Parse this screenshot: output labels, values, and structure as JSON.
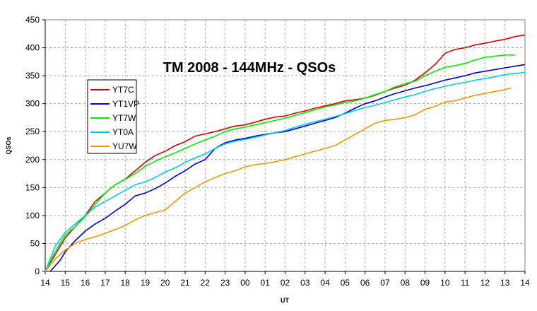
{
  "chart_data": {
    "type": "line",
    "title": "TM 2008 - 144MHz - QSOs",
    "xlabel": "UT",
    "ylabel": "QSOs",
    "x_tick_labels": [
      "14",
      "15",
      "16",
      "17",
      "18",
      "19",
      "20",
      "21",
      "22",
      "23",
      "00",
      "01",
      "02",
      "03",
      "04",
      "05",
      "06",
      "07",
      "08",
      "09",
      "10",
      "11",
      "12",
      "13",
      "14"
    ],
    "y_ticks": [
      0,
      50,
      100,
      150,
      200,
      250,
      300,
      350,
      400,
      450
    ],
    "xlim": [
      0,
      24
    ],
    "ylim": [
      0,
      450
    ],
    "grid": "dashed, both axes",
    "legend_position": "upper-left inside plot",
    "x_unit_note": "x values are hours elapsed since 14 UT",
    "series": [
      {
        "name": "YT7C",
        "color": "#dd0000",
        "x": [
          0,
          0.5,
          1,
          1.5,
          2,
          2.5,
          3,
          3.5,
          4,
          4.5,
          5,
          5.5,
          6,
          6.5,
          7,
          7.5,
          8,
          8.5,
          9,
          9.5,
          10,
          10.5,
          11,
          11.5,
          12,
          12.5,
          13,
          13.5,
          14,
          14.5,
          15,
          15.5,
          16,
          16.5,
          17,
          17.5,
          18,
          18.5,
          19,
          19.5,
          20,
          20.5,
          21,
          21.5,
          22,
          22.5,
          23,
          23.5,
          24
        ],
        "values": [
          0,
          30,
          60,
          80,
          100,
          125,
          140,
          155,
          165,
          180,
          195,
          207,
          215,
          225,
          232,
          242,
          246,
          250,
          255,
          260,
          262,
          267,
          272,
          276,
          278,
          283,
          287,
          292,
          296,
          300,
          305,
          307,
          310,
          315,
          322,
          328,
          333,
          342,
          355,
          370,
          390,
          397,
          400,
          405,
          408,
          412,
          415,
          420,
          423
        ]
      },
      {
        "name": "YT1VP",
        "color": "#0000cc",
        "x": [
          0.25,
          0.5,
          0.75,
          1,
          1.5,
          2,
          2.5,
          3,
          3.5,
          4,
          4.5,
          5,
          5.5,
          6,
          6.5,
          7,
          7.5,
          8,
          8.5,
          9,
          9.5,
          10,
          10.5,
          11,
          11.5,
          12,
          12.5,
          13,
          13.5,
          14,
          14.5,
          15,
          15.5,
          16,
          16.5,
          17,
          17.5,
          18,
          18.5,
          19,
          19.5,
          20,
          20.5,
          21,
          21.5,
          22,
          22.5,
          23,
          23.5,
          24
        ],
        "values": [
          0,
          10,
          20,
          35,
          55,
          72,
          85,
          95,
          108,
          120,
          135,
          140,
          148,
          158,
          170,
          180,
          192,
          200,
          220,
          230,
          235,
          238,
          242,
          245,
          248,
          250,
          255,
          260,
          265,
          270,
          275,
          283,
          292,
          300,
          305,
          312,
          318,
          323,
          328,
          332,
          337,
          342,
          346,
          350,
          355,
          358,
          361,
          364,
          367,
          370
        ]
      },
      {
        "name": "YT7W",
        "color": "#00ee00",
        "x": [
          0,
          0.5,
          1,
          1.5,
          2,
          2.5,
          3,
          3.5,
          4,
          4.5,
          5,
          5.5,
          6,
          6.5,
          7,
          7.5,
          8,
          8.5,
          9,
          9.5,
          10,
          10.5,
          11,
          11.5,
          12,
          12.5,
          13,
          13.5,
          14,
          14.5,
          15,
          15.5,
          16,
          16.5,
          17,
          17.5,
          18,
          18.5,
          19,
          19.5,
          20,
          20.5,
          21,
          21.5,
          22,
          22.5,
          23,
          23.5
        ],
        "values": [
          0,
          35,
          65,
          80,
          98,
          120,
          140,
          155,
          165,
          175,
          188,
          197,
          205,
          212,
          220,
          228,
          235,
          242,
          250,
          255,
          258,
          262,
          266,
          270,
          274,
          279,
          284,
          289,
          294,
          298,
          302,
          305,
          310,
          316,
          322,
          330,
          336,
          340,
          350,
          358,
          365,
          368,
          372,
          378,
          383,
          385,
          387,
          387
        ]
      },
      {
        "name": "YT0A",
        "color": "#00ccee",
        "x": [
          0,
          0.5,
          1,
          1.5,
          2,
          2.5,
          3,
          3.5,
          4,
          4.5,
          5,
          5.5,
          6,
          6.5,
          7,
          7.5,
          8,
          8.5,
          9,
          9.5,
          10,
          10.5,
          11,
          11.5,
          12,
          12.5,
          13,
          13.5,
          14,
          14.5,
          15,
          15.5,
          16,
          16.5,
          17,
          17.5,
          18,
          18.5,
          19,
          19.5,
          20,
          20.5,
          21,
          21.5,
          22,
          22.5,
          23,
          23.5,
          24
        ],
        "values": [
          0,
          45,
          70,
          85,
          100,
          115,
          125,
          135,
          145,
          155,
          160,
          168,
          178,
          185,
          195,
          203,
          210,
          220,
          228,
          233,
          236,
          240,
          244,
          248,
          252,
          258,
          263,
          268,
          272,
          277,
          282,
          288,
          293,
          297,
          302,
          307,
          312,
          316,
          322,
          327,
          331,
          335,
          338,
          342,
          345,
          348,
          352,
          354,
          356
        ]
      },
      {
        "name": "YU7W",
        "color": "#ee9900",
        "x": [
          0,
          0.5,
          1,
          1.5,
          2,
          2.5,
          3,
          3.5,
          4,
          4.5,
          5,
          5.5,
          6,
          6.5,
          7,
          7.5,
          8,
          8.5,
          9,
          9.5,
          10,
          10.5,
          11,
          11.5,
          12,
          12.5,
          13,
          13.5,
          14,
          14.5,
          15,
          15.5,
          16,
          16.5,
          17,
          17.5,
          18,
          18.5,
          19,
          19.5,
          20,
          20.5,
          21,
          21.5,
          22,
          22.5,
          23,
          23.3
        ],
        "values": [
          0,
          22,
          38,
          50,
          57,
          62,
          68,
          75,
          82,
          92,
          100,
          105,
          110,
          125,
          140,
          150,
          160,
          168,
          175,
          180,
          187,
          191,
          193,
          196,
          200,
          205,
          210,
          215,
          220,
          225,
          235,
          245,
          255,
          265,
          270,
          272,
          275,
          280,
          290,
          295,
          303,
          305,
          310,
          315,
          318,
          322,
          325,
          328
        ]
      }
    ]
  }
}
